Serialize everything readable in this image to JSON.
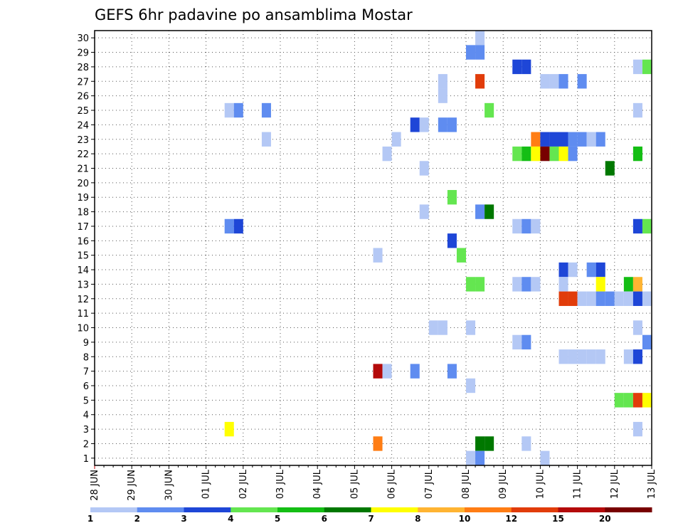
{
  "chart_data": {
    "type": "heatmap",
    "title": "GEFS 6hr padavine po ansamblima Mostar",
    "xlabel": "",
    "ylabel": "",
    "x_ticks": [
      "28 JUN",
      "29 JUN",
      "30 JUN",
      "01 JUL",
      "02 JUL",
      "03 JUL",
      "04 JUL",
      "05 JUL",
      "06 JUL",
      "07 JUL",
      "08 JUL",
      "09 JUL",
      "10 JUL",
      "11 JUL",
      "12 JUL",
      "13 JUL"
    ],
    "y_ticks": [
      1,
      2,
      3,
      4,
      5,
      6,
      7,
      8,
      9,
      10,
      11,
      12,
      13,
      14,
      15,
      16,
      17,
      18,
      19,
      20,
      21,
      22,
      23,
      24,
      25,
      26,
      27,
      28,
      29,
      30
    ],
    "x_unit": "6-hour steps from 28 JUN 00Z",
    "xlim": [
      0,
      60
    ],
    "ylim": [
      0.5,
      30.5
    ],
    "grid": true,
    "color_scale": {
      "labels": [
        "1",
        "2",
        "3",
        "4",
        "5",
        "6",
        "7",
        "8",
        "10",
        "12",
        "15",
        "20"
      ],
      "colors": [
        "#b4c8f5",
        "#5f8cf0",
        "#1e46d7",
        "#64e650",
        "#14be14",
        "#007800",
        "#ffff00",
        "#ffb432",
        "#ff7d14",
        "#e13c0a",
        "#b40a0a",
        "#780000"
      ]
    },
    "cells": [
      {
        "m": 30,
        "t": 42,
        "c": 1
      },
      {
        "m": 29,
        "t": 41,
        "c": 2
      },
      {
        "m": 29,
        "t": 42,
        "c": 2
      },
      {
        "m": 28,
        "t": 46,
        "c": 3
      },
      {
        "m": 28,
        "t": 47,
        "c": 3
      },
      {
        "m": 28,
        "t": 59,
        "c": 1
      },
      {
        "m": 28,
        "t": 60,
        "c": 4
      },
      {
        "m": 27,
        "t": 38,
        "c": 1
      },
      {
        "m": 27,
        "t": 42,
        "c": 10
      },
      {
        "m": 27,
        "t": 49,
        "c": 1
      },
      {
        "m": 27,
        "t": 50,
        "c": 1
      },
      {
        "m": 27,
        "t": 51,
        "c": 2
      },
      {
        "m": 27,
        "t": 53,
        "c": 2
      },
      {
        "m": 26,
        "t": 38,
        "c": 1
      },
      {
        "m": 25,
        "t": 15,
        "c": 1
      },
      {
        "m": 25,
        "t": 16,
        "c": 2
      },
      {
        "m": 25,
        "t": 19,
        "c": 2
      },
      {
        "m": 25,
        "t": 43,
        "c": 4
      },
      {
        "m": 25,
        "t": 59,
        "c": 1
      },
      {
        "m": 24,
        "t": 35,
        "c": 3
      },
      {
        "m": 24,
        "t": 36,
        "c": 1
      },
      {
        "m": 24,
        "t": 38,
        "c": 2
      },
      {
        "m": 24,
        "t": 39,
        "c": 2
      },
      {
        "m": 23,
        "t": 19,
        "c": 1
      },
      {
        "m": 23,
        "t": 33,
        "c": 1
      },
      {
        "m": 23,
        "t": 48,
        "c": 9
      },
      {
        "m": 23,
        "t": 49,
        "c": 3
      },
      {
        "m": 23,
        "t": 50,
        "c": 3
      },
      {
        "m": 23,
        "t": 51,
        "c": 3
      },
      {
        "m": 23,
        "t": 52,
        "c": 2
      },
      {
        "m": 23,
        "t": 53,
        "c": 2
      },
      {
        "m": 23,
        "t": 54,
        "c": 1
      },
      {
        "m": 23,
        "t": 55,
        "c": 2
      },
      {
        "m": 22,
        "t": 32,
        "c": 1
      },
      {
        "m": 22,
        "t": 46,
        "c": 4
      },
      {
        "m": 22,
        "t": 47,
        "c": 5
      },
      {
        "m": 22,
        "t": 48,
        "c": 7
      },
      {
        "m": 22,
        "t": 49,
        "c": 12
      },
      {
        "m": 22,
        "t": 50,
        "c": 4
      },
      {
        "m": 22,
        "t": 51,
        "c": 7
      },
      {
        "m": 22,
        "t": 52,
        "c": 2
      },
      {
        "m": 22,
        "t": 59,
        "c": 5
      },
      {
        "m": 21,
        "t": 36,
        "c": 1
      },
      {
        "m": 21,
        "t": 56,
        "c": 6
      },
      {
        "m": 19,
        "t": 39,
        "c": 4
      },
      {
        "m": 18,
        "t": 36,
        "c": 1
      },
      {
        "m": 18,
        "t": 42,
        "c": 2
      },
      {
        "m": 18,
        "t": 43,
        "c": 6
      },
      {
        "m": 17,
        "t": 15,
        "c": 2
      },
      {
        "m": 17,
        "t": 16,
        "c": 3
      },
      {
        "m": 17,
        "t": 46,
        "c": 1
      },
      {
        "m": 17,
        "t": 47,
        "c": 2
      },
      {
        "m": 17,
        "t": 48,
        "c": 1
      },
      {
        "m": 17,
        "t": 59,
        "c": 3
      },
      {
        "m": 17,
        "t": 60,
        "c": 4
      },
      {
        "m": 16,
        "t": 39,
        "c": 3
      },
      {
        "m": 15,
        "t": 31,
        "c": 1
      },
      {
        "m": 15,
        "t": 40,
        "c": 4
      },
      {
        "m": 14,
        "t": 51,
        "c": 3
      },
      {
        "m": 14,
        "t": 52,
        "c": 1
      },
      {
        "m": 14,
        "t": 54,
        "c": 2
      },
      {
        "m": 14,
        "t": 55,
        "c": 3
      },
      {
        "m": 13,
        "t": 41,
        "c": 4
      },
      {
        "m": 13,
        "t": 42,
        "c": 4
      },
      {
        "m": 13,
        "t": 46,
        "c": 1
      },
      {
        "m": 13,
        "t": 47,
        "c": 2
      },
      {
        "m": 13,
        "t": 48,
        "c": 1
      },
      {
        "m": 13,
        "t": 51,
        "c": 1
      },
      {
        "m": 13,
        "t": 55,
        "c": 7
      },
      {
        "m": 13,
        "t": 58,
        "c": 5
      },
      {
        "m": 13,
        "t": 59,
        "c": 8
      },
      {
        "m": 12,
        "t": 51,
        "c": 10
      },
      {
        "m": 12,
        "t": 52,
        "c": 10
      },
      {
        "m": 12,
        "t": 53,
        "c": 1
      },
      {
        "m": 12,
        "t": 54,
        "c": 1
      },
      {
        "m": 12,
        "t": 55,
        "c": 2
      },
      {
        "m": 12,
        "t": 56,
        "c": 2
      },
      {
        "m": 12,
        "t": 57,
        "c": 1
      },
      {
        "m": 12,
        "t": 58,
        "c": 1
      },
      {
        "m": 12,
        "t": 59,
        "c": 3
      },
      {
        "m": 12,
        "t": 60,
        "c": 1
      },
      {
        "m": 10,
        "t": 37,
        "c": 1
      },
      {
        "m": 10,
        "t": 38,
        "c": 1
      },
      {
        "m": 10,
        "t": 41,
        "c": 1
      },
      {
        "m": 10,
        "t": 59,
        "c": 1
      },
      {
        "m": 9,
        "t": 46,
        "c": 1
      },
      {
        "m": 9,
        "t": 47,
        "c": 2
      },
      {
        "m": 9,
        "t": 60,
        "c": 2
      },
      {
        "m": 8,
        "t": 51,
        "c": 1
      },
      {
        "m": 8,
        "t": 52,
        "c": 1
      },
      {
        "m": 8,
        "t": 53,
        "c": 1
      },
      {
        "m": 8,
        "t": 54,
        "c": 1
      },
      {
        "m": 8,
        "t": 55,
        "c": 1
      },
      {
        "m": 8,
        "t": 58,
        "c": 1
      },
      {
        "m": 8,
        "t": 59,
        "c": 3
      },
      {
        "m": 7,
        "t": 31,
        "c": 11
      },
      {
        "m": 7,
        "t": 32,
        "c": 1
      },
      {
        "m": 7,
        "t": 35,
        "c": 2
      },
      {
        "m": 7,
        "t": 39,
        "c": 2
      },
      {
        "m": 6,
        "t": 41,
        "c": 1
      },
      {
        "m": 5,
        "t": 57,
        "c": 4
      },
      {
        "m": 5,
        "t": 58,
        "c": 4
      },
      {
        "m": 5,
        "t": 59,
        "c": 10
      },
      {
        "m": 5,
        "t": 60,
        "c": 7
      },
      {
        "m": 3,
        "t": 15,
        "c": 7
      },
      {
        "m": 3,
        "t": 59,
        "c": 1
      },
      {
        "m": 2,
        "t": 31,
        "c": 9
      },
      {
        "m": 2,
        "t": 42,
        "c": 6
      },
      {
        "m": 2,
        "t": 43,
        "c": 6
      },
      {
        "m": 2,
        "t": 47,
        "c": 1
      },
      {
        "m": 1,
        "t": 41,
        "c": 1
      },
      {
        "m": 1,
        "t": 42,
        "c": 2
      },
      {
        "m": 1,
        "t": 49,
        "c": 1
      }
    ]
  }
}
